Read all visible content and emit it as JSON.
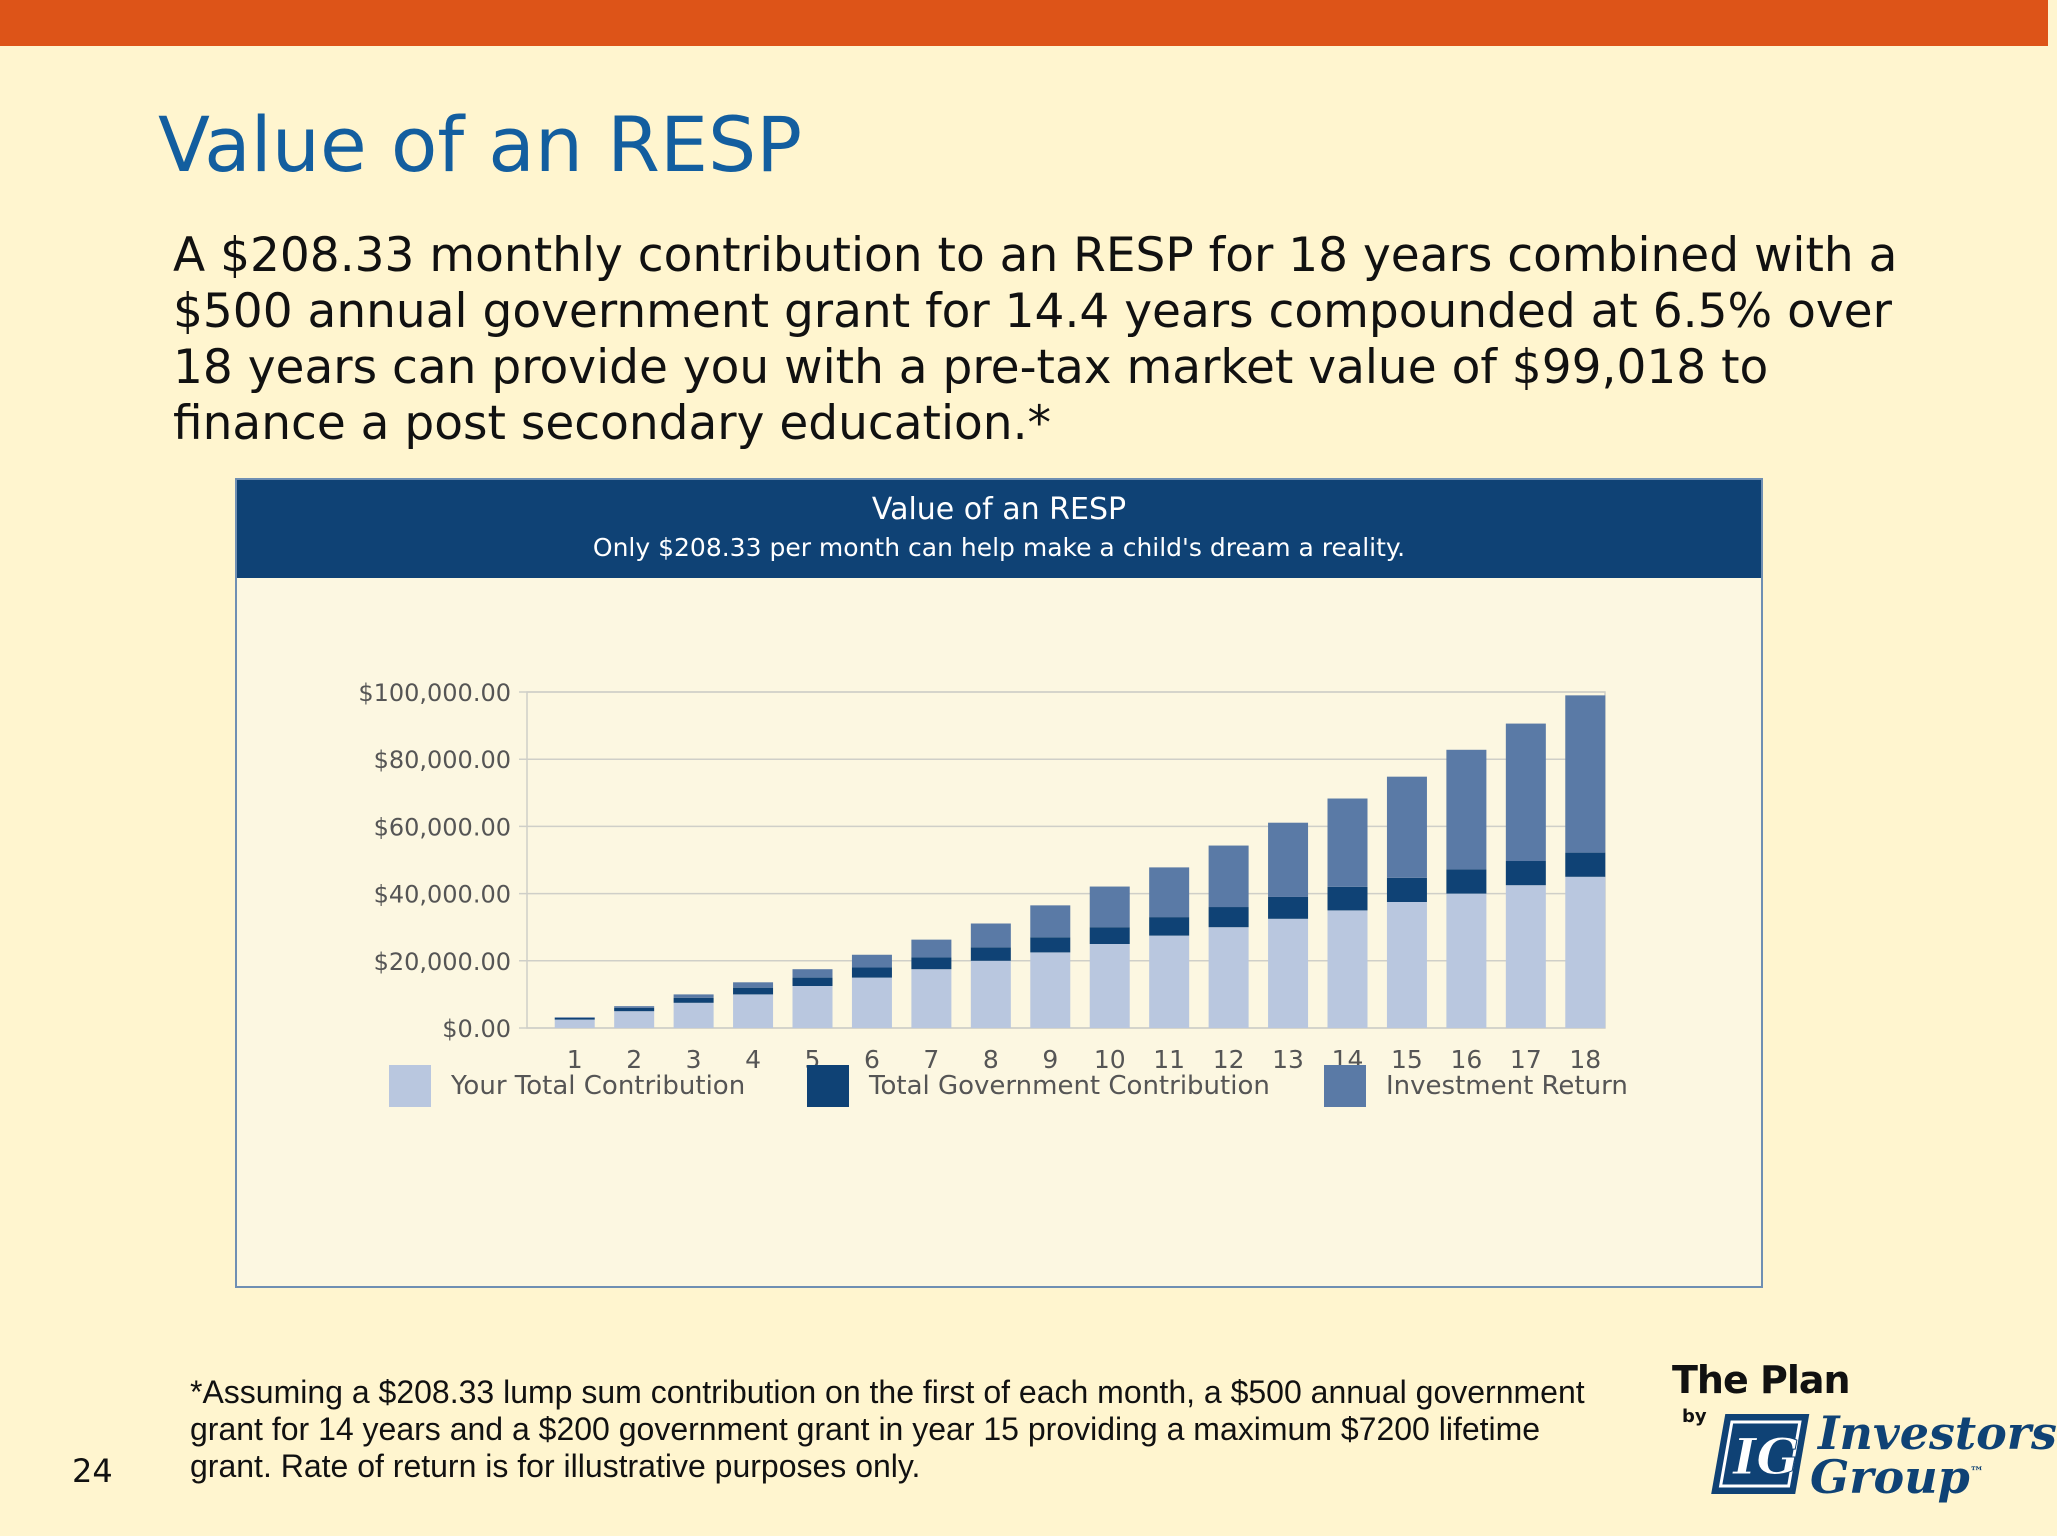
{
  "slide": {
    "title": "Value of an RESP",
    "body": "A $208.33 monthly contribution to an RESP for 18 years combined with a $500 annual government grant for 14.4 years compounded at 6.5% over 18 years can provide you with a pre-tax market value of $99,018 to finance a post secondary education.*",
    "footnote": "*Assuming a $208.33 lump sum contribution on the first of each month, a $500 annual government grant  for 14 years and a $200 government grant in year 15 providing a maximum $7200 lifetime grant. Rate of return is for illustrative purposes only.",
    "page_number": "24"
  },
  "logo": {
    "plan_text": "The Plan",
    "by_text": "by",
    "mark_text": "IG",
    "name_line1": "Investors",
    "name_line2": "Group",
    "trademark": "™"
  },
  "colors": {
    "top_bar": "#dd5418",
    "title": "#135e9f",
    "chart_header": "#0f4275",
    "your_contribution": "#b9c7df",
    "government_contribution": "#0f4275",
    "investment_return": "#5a7aa6"
  },
  "chart_data": {
    "type": "bar",
    "stacked": true,
    "title": "Value of an RESP",
    "subtitle": "Only $208.33 per month can help make a child's dream a reality.",
    "categories": [
      "1",
      "2",
      "3",
      "4",
      "5",
      "6",
      "7",
      "8",
      "9",
      "10",
      "11",
      "12",
      "13",
      "14",
      "15",
      "16",
      "17",
      "18"
    ],
    "series": [
      {
        "name": "Your Total Contribution",
        "values": [
          2500,
          5000,
          7500,
          10000,
          12500,
          15000,
          17500,
          20000,
          22500,
          25000,
          27500,
          30000,
          32500,
          35000,
          37500,
          40000,
          42500,
          45000
        ]
      },
      {
        "name": "Total Government Contribution",
        "values": [
          500,
          1000,
          1500,
          2000,
          2500,
          3000,
          3500,
          4000,
          4500,
          5000,
          5500,
          6000,
          6500,
          7000,
          7200,
          7200,
          7200,
          7200
        ]
      },
      {
        "name": "Investment Return",
        "values": [
          200,
          500,
          1000,
          1600,
          2500,
          3800,
          5300,
          7100,
          9500,
          12100,
          14800,
          18300,
          22100,
          26300,
          30100,
          35600,
          40900,
          46800
        ]
      }
    ],
    "ylim": [
      0,
      100000
    ],
    "yticks": [
      0,
      20000,
      40000,
      60000,
      80000,
      100000
    ],
    "ytick_labels": [
      "$0.00",
      "$20,000.00",
      "$40,000.00",
      "$60,000.00",
      "$80,000.00",
      "$100,000.00"
    ],
    "grid": true,
    "legend_position": "bottom"
  }
}
